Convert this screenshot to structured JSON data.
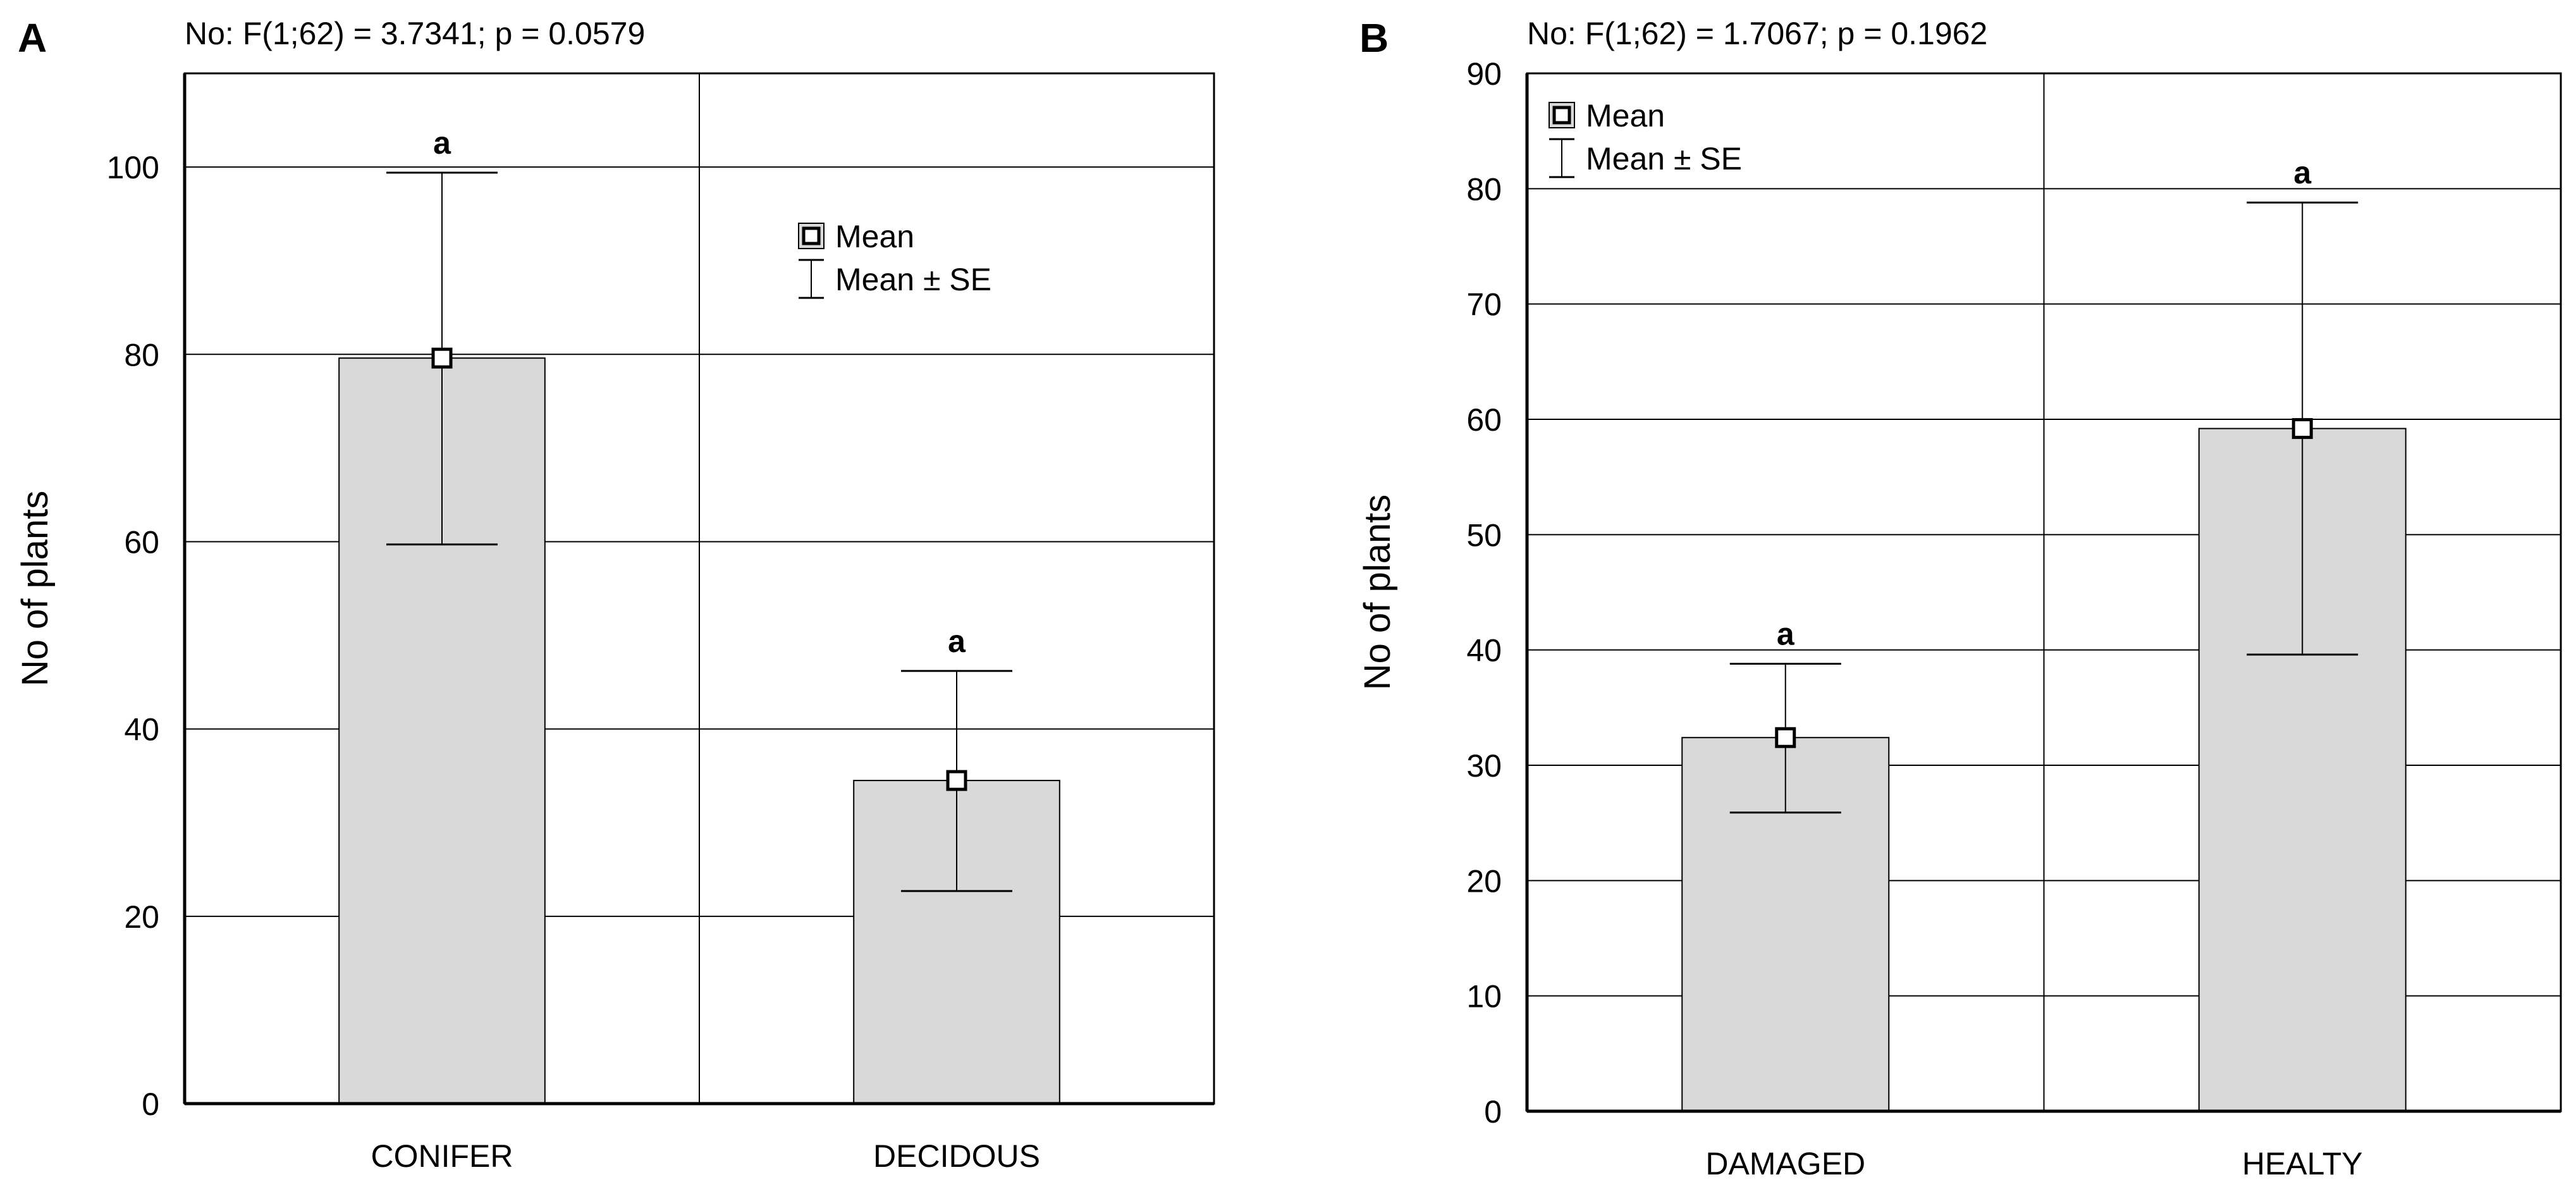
{
  "colors": {
    "bar_fill": "#d9d9d9",
    "line": "#000000",
    "grid": "#000000",
    "background": "#ffffff"
  },
  "chart_data": [
    {
      "type": "bar",
      "panel_label": "A",
      "title": "No: F(1;62) = 3.7341; p = 0.0579",
      "xlabel": "",
      "ylabel": "No of plants",
      "ylim": [
        0,
        110
      ],
      "yticks": [
        0,
        20,
        40,
        60,
        80,
        100
      ],
      "grid": true,
      "categories": [
        "CONIFER",
        "DECIDOUS"
      ],
      "values": [
        79.6,
        34.5
      ],
      "se_lower": [
        59.7,
        22.7
      ],
      "se_upper": [
        99.4,
        46.2
      ],
      "significance": [
        "a",
        "a"
      ],
      "legend": {
        "position": "upper-center-right",
        "mean_label": "Mean",
        "se_label": "Mean ± SE"
      }
    },
    {
      "type": "bar",
      "panel_label": "B",
      "title": "No: F(1;62) = 1.7067; p = 0.1962",
      "xlabel": "",
      "ylabel": "No of plants",
      "ylim": [
        0,
        90
      ],
      "yticks": [
        0,
        10,
        20,
        30,
        40,
        50,
        60,
        70,
        80,
        90
      ],
      "grid": true,
      "categories": [
        "DAMAGED",
        "HEALTY"
      ],
      "values": [
        32.4,
        59.2
      ],
      "se_lower": [
        25.9,
        39.6
      ],
      "se_upper": [
        38.8,
        78.8
      ],
      "significance": [
        "a",
        "a"
      ],
      "legend": {
        "position": "top-left",
        "mean_label": "Mean",
        "se_label": "Mean ± SE"
      }
    }
  ]
}
